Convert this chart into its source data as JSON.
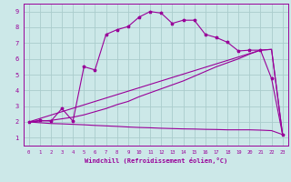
{
  "xlabel": "Windchill (Refroidissement éolien,°C)",
  "bg_color": "#cce8e8",
  "line_color": "#990099",
  "xlim": [
    -0.5,
    23.5
  ],
  "ylim": [
    0.5,
    9.5
  ],
  "xticks": [
    0,
    1,
    2,
    3,
    4,
    5,
    6,
    7,
    8,
    9,
    10,
    11,
    12,
    13,
    14,
    15,
    16,
    17,
    18,
    19,
    20,
    21,
    22,
    23
  ],
  "yticks": [
    1,
    2,
    3,
    4,
    5,
    6,
    7,
    8,
    9
  ],
  "grid_color": "#aacccc",
  "line1_x": [
    0,
    1,
    2,
    3,
    4,
    5,
    6,
    7,
    8,
    9,
    10,
    11,
    12,
    13,
    14,
    15,
    16,
    17,
    18,
    19,
    20,
    21,
    22,
    23
  ],
  "line1_y": [
    2.0,
    2.1,
    2.05,
    2.85,
    2.05,
    5.5,
    5.3,
    7.55,
    7.85,
    8.05,
    8.65,
    9.0,
    8.9,
    8.25,
    8.45,
    8.45,
    7.55,
    7.35,
    7.05,
    6.5,
    6.55,
    6.55,
    4.75,
    1.2
  ],
  "line2_x": [
    0,
    1,
    2,
    3,
    4,
    5,
    6,
    7,
    8,
    9,
    10,
    11,
    12,
    13,
    14,
    15,
    16,
    17,
    18,
    19,
    20,
    21,
    22,
    23
  ],
  "line2_y": [
    2.0,
    2.05,
    2.1,
    2.2,
    2.3,
    2.45,
    2.65,
    2.85,
    3.1,
    3.3,
    3.6,
    3.85,
    4.1,
    4.35,
    4.6,
    4.9,
    5.2,
    5.5,
    5.75,
    6.0,
    6.3,
    6.55,
    6.6,
    1.2
  ],
  "line3_x": [
    0,
    1,
    2,
    3,
    4,
    5,
    6,
    7,
    8,
    9,
    10,
    11,
    12,
    13,
    14,
    15,
    16,
    17,
    18,
    19,
    20,
    21,
    22,
    23
  ],
  "line3_y": [
    2.0,
    1.95,
    1.9,
    1.88,
    1.85,
    1.82,
    1.78,
    1.75,
    1.72,
    1.68,
    1.65,
    1.63,
    1.6,
    1.58,
    1.56,
    1.55,
    1.53,
    1.52,
    1.5,
    1.5,
    1.5,
    1.48,
    1.45,
    1.2
  ],
  "line4_x": [
    0,
    21,
    22,
    23
  ],
  "line4_y": [
    2.0,
    6.55,
    6.6,
    1.2
  ]
}
